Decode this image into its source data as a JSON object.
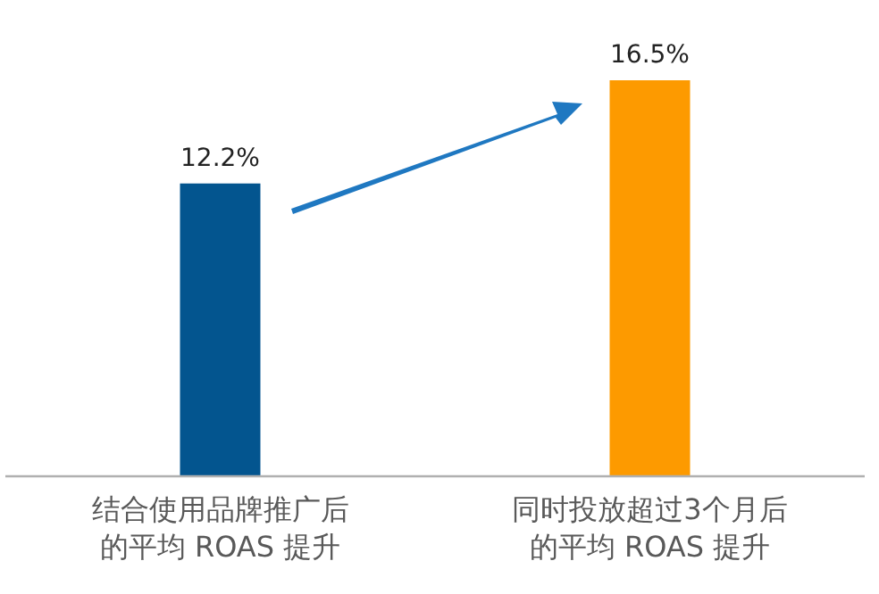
{
  "chart_data": {
    "type": "bar",
    "categories": [
      "结合使用品牌推广后的平均 ROAS 提升",
      "同时投放超过3个月后的平均 ROAS 提升"
    ],
    "values": [
      12.2,
      16.5
    ],
    "colors": [
      "#03558f",
      "#fd9a00"
    ],
    "value_labels": [
      "12.2%",
      "16.5%"
    ]
  }
}
